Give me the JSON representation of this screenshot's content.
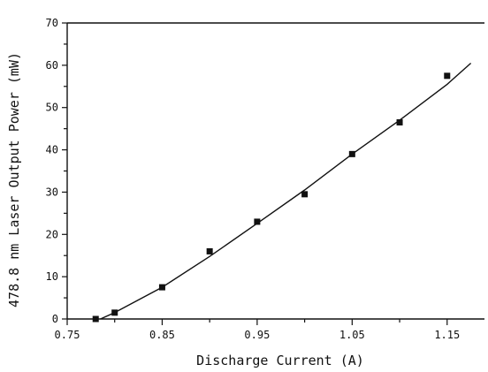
{
  "chart_data": {
    "type": "scatter",
    "xlabel": "Discharge Current (A)",
    "ylabel": "478.8 nm Laser Output Power (mW)",
    "xlim": [
      0.75,
      1.18
    ],
    "ylim": [
      0,
      70
    ],
    "x_ticks": [
      "0.75",
      "0.85",
      "0.95",
      "1.05",
      "1.15"
    ],
    "y_ticks": [
      "0",
      "10",
      "20",
      "30",
      "40",
      "50",
      "60",
      "70"
    ],
    "x_tick_values": [
      0.75,
      0.85,
      0.95,
      1.05,
      1.15
    ],
    "y_tick_values": [
      0,
      10,
      20,
      30,
      40,
      50,
      60,
      70
    ],
    "x_minor_step": 0.05,
    "y_minor_step": 5,
    "grid": false,
    "series": [
      {
        "kind": "scatter",
        "x": [
          0.78,
          0.8,
          0.85,
          0.9,
          0.95,
          1.0,
          1.05,
          1.1,
          1.15
        ],
        "y": [
          0,
          1.5,
          7.5,
          16,
          23,
          29.5,
          39,
          46.5,
          57.5
        ]
      },
      {
        "kind": "line",
        "x": [
          0.785,
          0.8,
          0.85,
          0.9,
          0.95,
          1.0,
          1.05,
          1.1,
          1.15,
          1.175
        ],
        "y": [
          0,
          1.5,
          7.5,
          14.8,
          22.6,
          30.5,
          39.0,
          47.0,
          55.5,
          60.5
        ]
      }
    ]
  }
}
